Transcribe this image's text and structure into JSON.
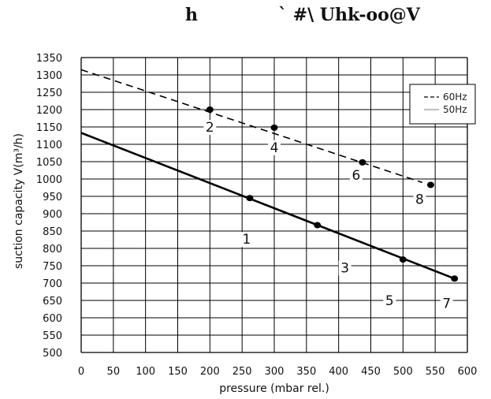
{
  "chart_data": {
    "type": "line",
    "title_parts": [
      "h",
      "` #\\ Uhk-oo@V"
    ],
    "xlabel": "pressure (mbar rel.)",
    "ylabel": "suction capacity V(m³/h)",
    "xlim": [
      0,
      600
    ],
    "ylim": [
      500,
      1350
    ],
    "x_ticks": [
      0,
      50,
      100,
      150,
      200,
      250,
      300,
      350,
      400,
      450,
      500,
      550,
      600
    ],
    "y_ticks": [
      500,
      550,
      600,
      650,
      700,
      750,
      800,
      850,
      900,
      950,
      1000,
      1050,
      1100,
      1150,
      1200,
      1250,
      1300,
      1350
    ],
    "grid": true,
    "legend_position": "top-right",
    "series": [
      {
        "name": "60Hz",
        "style": "dashed",
        "x": [
          0,
          530
        ],
        "y": [
          1315,
          990
        ],
        "markers": [
          {
            "x": 200,
            "y": 1200,
            "label": "2"
          },
          {
            "x": 300,
            "y": 1148,
            "label": "4"
          },
          {
            "x": 437,
            "y": 1048,
            "label": "6"
          },
          {
            "x": 543,
            "y": 983,
            "label": "8"
          }
        ]
      },
      {
        "name": "50Hz",
        "style": "solid",
        "x": [
          0,
          580
        ],
        "y": [
          1133,
          713
        ],
        "markers": [
          {
            "x": 262,
            "y": 945,
            "label": "1"
          },
          {
            "x": 367,
            "y": 867,
            "label": "3"
          },
          {
            "x": 500,
            "y": 768,
            "label": "5"
          },
          {
            "x": 580,
            "y": 713,
            "label": "7"
          }
        ]
      }
    ],
    "colors": {
      "line": "#000000",
      "grid": "#000000",
      "legend_solid": "#999999"
    }
  }
}
